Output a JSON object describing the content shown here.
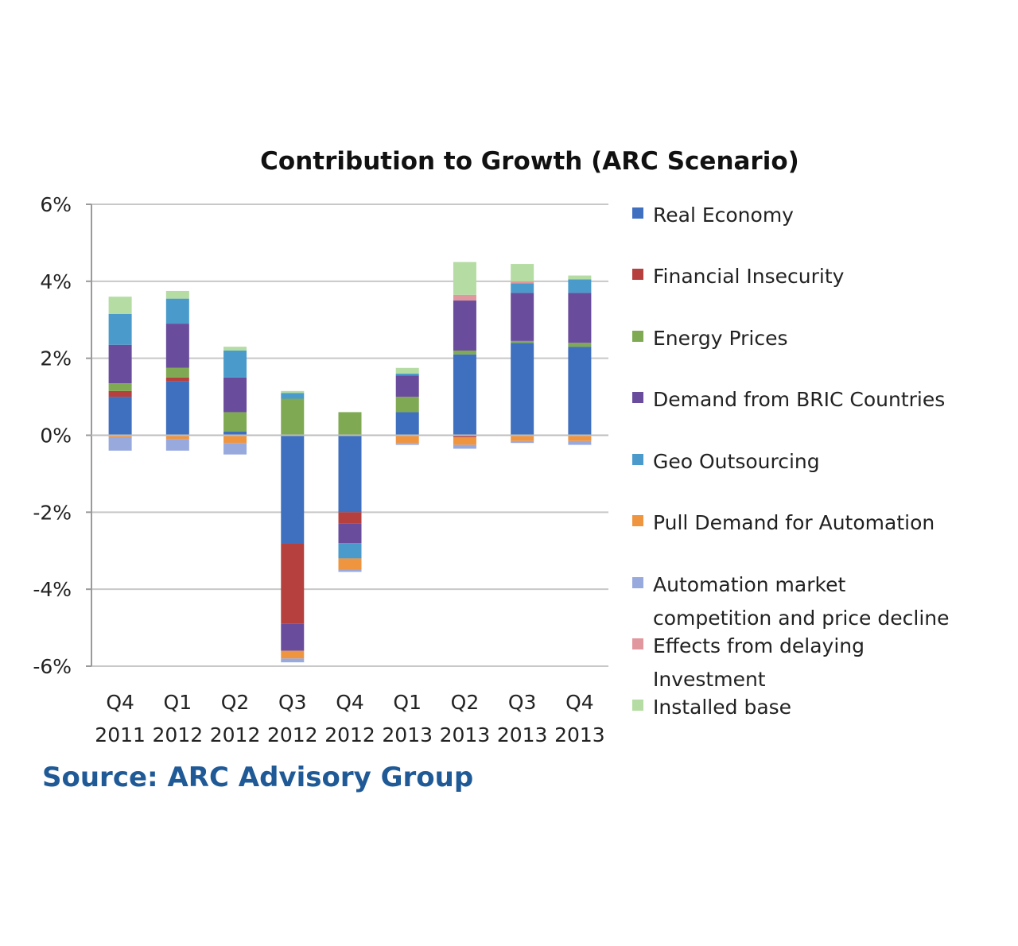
{
  "source": "Source:  ARC Advisory Group",
  "chart_data": {
    "type": "bar",
    "stacked": true,
    "title": "Contribution to Growth (ARC Scenario)",
    "xlabel": "",
    "ylabel": "",
    "ylim": [
      -0.06,
      0.06
    ],
    "yticks": [
      0.06,
      0.04,
      0.02,
      0,
      -0.02,
      -0.04,
      -0.06
    ],
    "ytick_labels": [
      "6%",
      "4%",
      "2%",
      "0%",
      "-2%",
      "-4%",
      "-6%"
    ],
    "grid": true,
    "legend_position": "right",
    "categories": [
      [
        "Q4",
        "2011"
      ],
      [
        "Q1",
        "2012"
      ],
      [
        "Q2",
        "2012"
      ],
      [
        "Q3",
        "2012"
      ],
      [
        "Q4",
        "2012"
      ],
      [
        "Q1",
        "2013"
      ],
      [
        "Q2",
        "2013"
      ],
      [
        "Q3",
        "2013"
      ],
      [
        "Q4",
        "2013"
      ]
    ],
    "series": [
      {
        "name": "Real Economy",
        "color": "#3f6fbf",
        "values": [
          0.01,
          0.014,
          0.001,
          -0.028,
          -0.02,
          0.006,
          0.021,
          0.024,
          0.023
        ]
      },
      {
        "name": "Financial Insecurity",
        "color": "#b5403e",
        "values": [
          0.0015,
          0.001,
          0.0,
          -0.021,
          -0.003,
          0.0,
          -0.0005,
          0.0,
          0.0
        ]
      },
      {
        "name": "Energy Prices",
        "color": "#7fa952",
        "values": [
          0.002,
          0.0025,
          0.005,
          0.0095,
          0.006,
          0.004,
          0.001,
          0.0005,
          0.001
        ]
      },
      {
        "name": "Demand from BRIC Countries",
        "color": "#6a4c9c",
        "values": [
          0.01,
          0.0115,
          0.009,
          -0.007,
          -0.005,
          0.0055,
          0.013,
          0.0125,
          0.013
        ]
      },
      {
        "name": "Geo Outsourcing",
        "color": "#4a9bcc",
        "values": [
          0.008,
          0.0065,
          0.007,
          0.0015,
          -0.004,
          0.0005,
          0.0,
          0.0025,
          0.0035
        ]
      },
      {
        "name": "Pull Demand for Automation",
        "color": "#f0953f",
        "values": [
          -0.0005,
          -0.001,
          -0.002,
          -0.002,
          -0.003,
          -0.002,
          -0.002,
          -0.0015,
          -0.0015
        ]
      },
      {
        "name": "Automation market competition and price decline",
        "color": "#98a9de",
        "values": [
          -0.0035,
          -0.003,
          -0.003,
          -0.001,
          -0.0005,
          -0.0005,
          -0.001,
          -0.0005,
          -0.001
        ]
      },
      {
        "name": "Effects from delaying Investment",
        "color": "#e0979e",
        "values": [
          0.0,
          0.0,
          0.0,
          0.0,
          0.0,
          0.0,
          0.0015,
          0.0005,
          0.0
        ]
      },
      {
        "name": "Installed base",
        "color": "#b5dca2",
        "values": [
          0.0045,
          0.002,
          0.001,
          0.0005,
          0.0,
          0.0015,
          0.0085,
          0.0045,
          0.001
        ]
      }
    ],
    "legend_lines": [
      [
        "Real Economy"
      ],
      [
        "Financial Insecurity"
      ],
      [
        "Energy Prices"
      ],
      [
        "Demand from BRIC Countries"
      ],
      [
        "Geo Outsourcing"
      ],
      [
        "Pull Demand for Automation"
      ],
      [
        "Automation market",
        "competition and price decline"
      ],
      [
        "Effects from delaying",
        "Investment"
      ],
      [
        "Installed base"
      ]
    ]
  }
}
